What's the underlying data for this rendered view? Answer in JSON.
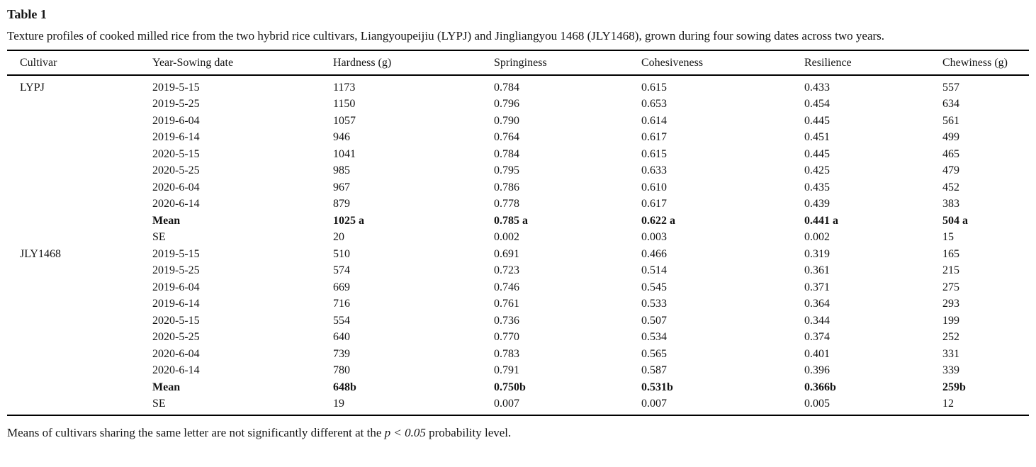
{
  "page": {
    "title": "Table 1",
    "caption": "Texture profiles of cooked milled rice from the two hybrid rice cultivars, Liangyoupeijiu (LYPJ) and Jingliangyou 1468 (JLY1468), grown during four sowing dates across two years.",
    "footnote": {
      "prefix": "Means of cultivars sharing the same letter are not significantly different at the ",
      "italic": "p < 0.05",
      "suffix": " probability level."
    }
  },
  "table": {
    "columns": [
      "Cultivar",
      "Year-Sowing date",
      "Hardness (g)",
      "Springiness",
      "Cohesiveness",
      "Resilience",
      "Chewiness (g)"
    ],
    "rows": [
      {
        "cells": [
          "LYPJ",
          "2019-5-15",
          "1173",
          "0.784",
          "0.615",
          "0.433",
          "557"
        ],
        "bold": false
      },
      {
        "cells": [
          "",
          "2019-5-25",
          "1150",
          "0.796",
          "0.653",
          "0.454",
          "634"
        ],
        "bold": false
      },
      {
        "cells": [
          "",
          "2019-6-04",
          "1057",
          "0.790",
          "0.614",
          "0.445",
          "561"
        ],
        "bold": false
      },
      {
        "cells": [
          "",
          "2019-6-14",
          "946",
          "0.764",
          "0.617",
          "0.451",
          "499"
        ],
        "bold": false
      },
      {
        "cells": [
          "",
          "2020-5-15",
          "1041",
          "0.784",
          "0.615",
          "0.445",
          "465"
        ],
        "bold": false
      },
      {
        "cells": [
          "",
          "2020-5-25",
          "985",
          "0.795",
          "0.633",
          "0.425",
          "479"
        ],
        "bold": false
      },
      {
        "cells": [
          "",
          "2020-6-04",
          "967",
          "0.786",
          "0.610",
          "0.435",
          "452"
        ],
        "bold": false
      },
      {
        "cells": [
          "",
          "2020-6-14",
          "879",
          "0.778",
          "0.617",
          "0.439",
          "383"
        ],
        "bold": false
      },
      {
        "cells": [
          "",
          "Mean",
          "1025 a",
          "0.785 a",
          "0.622 a",
          "0.441 a",
          "504 a"
        ],
        "bold": true
      },
      {
        "cells": [
          "",
          "SE",
          "20",
          "0.002",
          "0.003",
          "0.002",
          "15"
        ],
        "bold": false
      },
      {
        "cells": [
          "JLY1468",
          "2019-5-15",
          "510",
          "0.691",
          "0.466",
          "0.319",
          "165"
        ],
        "bold": false
      },
      {
        "cells": [
          "",
          "2019-5-25",
          "574",
          "0.723",
          "0.514",
          "0.361",
          "215"
        ],
        "bold": false
      },
      {
        "cells": [
          "",
          "2019-6-04",
          "669",
          "0.746",
          "0.545",
          "0.371",
          "275"
        ],
        "bold": false
      },
      {
        "cells": [
          "",
          "2019-6-14",
          "716",
          "0.761",
          "0.533",
          "0.364",
          "293"
        ],
        "bold": false
      },
      {
        "cells": [
          "",
          "2020-5-15",
          "554",
          "0.736",
          "0.507",
          "0.344",
          "199"
        ],
        "bold": false
      },
      {
        "cells": [
          "",
          "2020-5-25",
          "640",
          "0.770",
          "0.534",
          "0.374",
          "252"
        ],
        "bold": false
      },
      {
        "cells": [
          "",
          "2020-6-04",
          "739",
          "0.783",
          "0.565",
          "0.401",
          "331"
        ],
        "bold": false
      },
      {
        "cells": [
          "",
          "2020-6-14",
          "780",
          "0.791",
          "0.587",
          "0.396",
          "339"
        ],
        "bold": false
      },
      {
        "cells": [
          "",
          "Mean",
          "648b",
          "0.750b",
          "0.531b",
          "0.366b",
          "259b"
        ],
        "bold": true
      },
      {
        "cells": [
          "",
          "SE",
          "19",
          "0.007",
          "0.007",
          "0.005",
          "12"
        ],
        "bold": false
      }
    ]
  }
}
